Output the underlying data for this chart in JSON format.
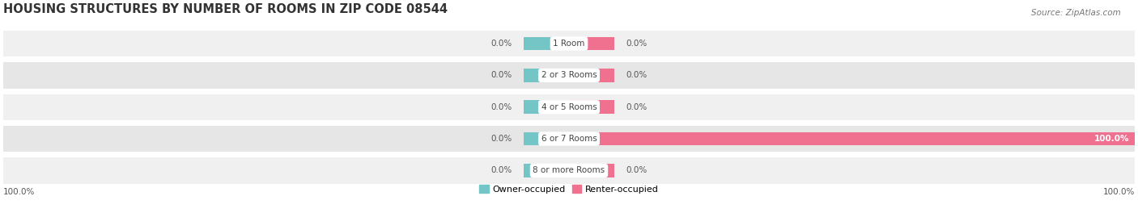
{
  "title": "HOUSING STRUCTURES BY NUMBER OF ROOMS IN ZIP CODE 08544",
  "source": "Source: ZipAtlas.com",
  "categories": [
    "1 Room",
    "2 or 3 Rooms",
    "4 or 5 Rooms",
    "6 or 7 Rooms",
    "8 or more Rooms"
  ],
  "owner_values": [
    0.0,
    0.0,
    0.0,
    0.0,
    0.0
  ],
  "renter_values": [
    0.0,
    0.0,
    0.0,
    100.0,
    0.0
  ],
  "owner_color": "#74C6C6",
  "renter_color": "#F07090",
  "row_bg_odd": "#F0F0F0",
  "row_bg_even": "#E6E6E6",
  "title_fontsize": 10.5,
  "source_fontsize": 7.5,
  "label_fontsize": 7.5,
  "value_fontsize": 7.5,
  "legend_fontsize": 8,
  "xlim": [
    -100,
    100
  ],
  "stub_size": 8,
  "figsize": [
    14.06,
    2.69
  ],
  "dpi": 100
}
